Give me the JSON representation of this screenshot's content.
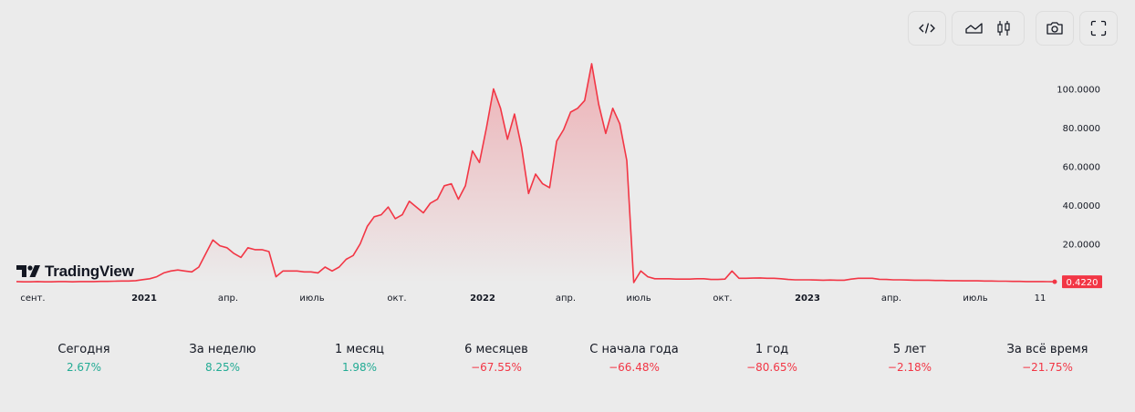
{
  "toolbar": {
    "embed_icon": "code-icon",
    "area_icon": "area-chart-icon",
    "candles_icon": "candlestick-icon",
    "snapshot_icon": "camera-icon",
    "fullscreen_icon": "fullscreen-icon"
  },
  "logo": {
    "text": "TradingView"
  },
  "colors": {
    "line": "#f23645",
    "positive": "#22ab94",
    "negative": "#f23645"
  },
  "chart_data": {
    "type": "area",
    "x_labels": [
      "сент.",
      "2021",
      "апр.",
      "июль",
      "окт.",
      "2022",
      "апр.",
      "июль",
      "окт.",
      "2023",
      "апр.",
      "июль",
      "11"
    ],
    "y_ticks": [
      "20.0000",
      "40.0000",
      "60.0000",
      "80.0000",
      "100.0000"
    ],
    "ylim": [
      0,
      120
    ],
    "last_value_label": "0.4220",
    "last_value": 0.422,
    "series": [
      {
        "values": [
          0.5,
          0.4,
          0.4,
          0.5,
          0.4,
          0.4,
          0.5,
          0.5,
          0.4,
          0.5,
          0.5,
          0.5,
          0.6,
          0.6,
          0.7,
          0.8,
          0.8,
          1,
          1.5,
          2,
          3,
          5,
          6,
          6.5,
          6,
          5.5,
          8,
          15,
          22,
          19,
          18,
          15,
          13,
          18,
          17,
          17,
          16,
          3,
          6,
          6,
          6,
          5.5,
          5.5,
          5,
          8,
          6,
          8,
          12,
          14,
          20,
          29,
          34,
          35,
          39,
          33,
          35,
          42,
          39,
          36,
          41,
          43,
          50,
          51,
          43,
          50,
          68,
          62,
          80,
          100,
          90,
          74,
          87,
          70,
          46,
          56,
          51,
          49,
          73,
          79,
          88,
          90,
          94,
          113,
          92,
          77,
          90,
          82,
          63,
          0,
          6,
          3,
          2,
          2,
          2,
          1.8,
          1.8,
          1.8,
          2,
          2,
          1.6,
          1.6,
          1.8,
          6,
          2.2,
          2.2,
          2.3,
          2.4,
          2.2,
          2.2,
          2,
          1.6,
          1.4,
          1.4,
          1.4,
          1.3,
          1.2,
          1.3,
          1.2,
          1.2,
          1.8,
          2.2,
          2.2,
          2.2,
          1.7,
          1.6,
          1.4,
          1.4,
          1.3,
          1.2,
          1.2,
          1.2,
          1.1,
          1.1,
          1,
          1,
          0.9,
          0.9,
          0.9,
          0.8,
          0.8,
          0.7,
          0.7,
          0.6,
          0.6,
          0.5,
          0.5,
          0.5,
          0.45,
          0.42
        ]
      }
    ]
  },
  "stats": [
    {
      "label": "Сегодня",
      "value": "2.67%",
      "trend": "positive"
    },
    {
      "label": "За неделю",
      "value": "8.25%",
      "trend": "positive"
    },
    {
      "label": "1 месяц",
      "value": "1.98%",
      "trend": "positive"
    },
    {
      "label": "6 месяцев",
      "value": "−67.55%",
      "trend": "negative"
    },
    {
      "label": "С начала года",
      "value": "−66.48%",
      "trend": "negative"
    },
    {
      "label": "1 год",
      "value": "−80.65%",
      "trend": "negative"
    },
    {
      "label": "5 лет",
      "value": "−2.18%",
      "trend": "negative"
    },
    {
      "label": "За всё время",
      "value": "−21.75%",
      "trend": "negative"
    }
  ]
}
